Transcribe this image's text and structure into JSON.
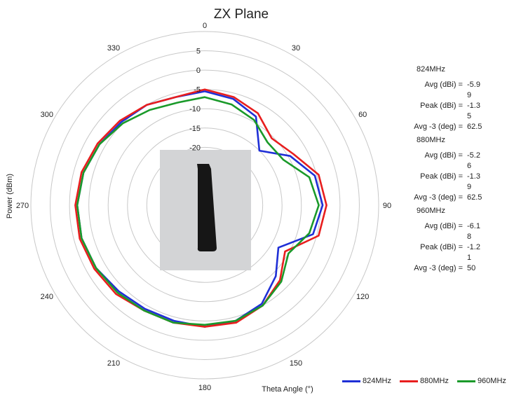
{
  "chart_data": {
    "type": "polar-line",
    "title": "ZX Plane",
    "xlabel": "Theta  Angle (°)",
    "ylabel": "Power (dBm)",
    "angle_ticks": [
      "0",
      "30",
      "60",
      "90",
      "120",
      "150",
      "180",
      "210",
      "240",
      "270",
      "300",
      "330"
    ],
    "radial_ticks": [
      5,
      0,
      -5,
      -10,
      -15,
      -20
    ],
    "rlim": [
      -35,
      10
    ],
    "angles": [
      0,
      15,
      30,
      45,
      60,
      75,
      90,
      105,
      120,
      135,
      150,
      165,
      180,
      195,
      210,
      225,
      240,
      255,
      270,
      285,
      300,
      315,
      330,
      345
    ],
    "series": [
      {
        "name": "824MHz",
        "color": "#1f2fd6",
        "values": [
          -5.5,
          -6.5,
          -8.5,
          -15,
          -9.5,
          -5.5,
          -4.5,
          -6,
          -13,
          -9,
          -5.5,
          -4,
          -3.5,
          -4,
          -4,
          -3.5,
          -2.5,
          -2,
          -2,
          -2.5,
          -3.5,
          -4.5,
          -5,
          -6
        ]
      },
      {
        "name": "880MHz",
        "color": "#e81e1e",
        "values": [
          -5,
          -6,
          -7.5,
          -10.5,
          -8.5,
          -4.5,
          -3.5,
          -4.5,
          -11,
          -7.5,
          -5,
          -3.5,
          -3.5,
          -3.5,
          -3.5,
          -2.5,
          -2,
          -1.5,
          -1.5,
          -2,
          -3,
          -4,
          -5,
          -6
        ]
      },
      {
        "name": "960MHz",
        "color": "#1a9a2a",
        "values": [
          -7,
          -8,
          -9.5,
          -12,
          -11.5,
          -7,
          -5.5,
          -7,
          -10,
          -7,
          -5,
          -4,
          -4,
          -3.5,
          -3.5,
          -3,
          -2.5,
          -2,
          -2,
          -2.5,
          -3.5,
          -5,
          -6.5,
          -7.5
        ]
      }
    ],
    "stats": [
      {
        "freq": "824MHz",
        "avg_label": "Avg (dBi) =",
        "avg": "-5.99",
        "peak_label": "Peak (dBi) =",
        "peak": "-1.35",
        "bw_label": "Avg -3 (deg) =",
        "bw": "62.5"
      },
      {
        "freq": "880MHz",
        "avg_label": "Avg (dBi) =",
        "avg": "-5.26",
        "peak_label": "Peak (dBi) =",
        "peak": "-1.39",
        "bw_label": "Avg -3 (deg) =",
        "bw": "62.5"
      },
      {
        "freq": "960MHz",
        "avg_label": "Avg (dBi) =",
        "avg": "-6.18",
        "peak_label": "Peak (dBi) =",
        "peak": "-1.21",
        "bw_label": "Avg -3 (deg) =",
        "bw": "50"
      }
    ],
    "inset_photo": {
      "background": "#d3d4d6",
      "object_color": "#161616"
    },
    "grid": true,
    "legend_position": "bottom-right"
  }
}
